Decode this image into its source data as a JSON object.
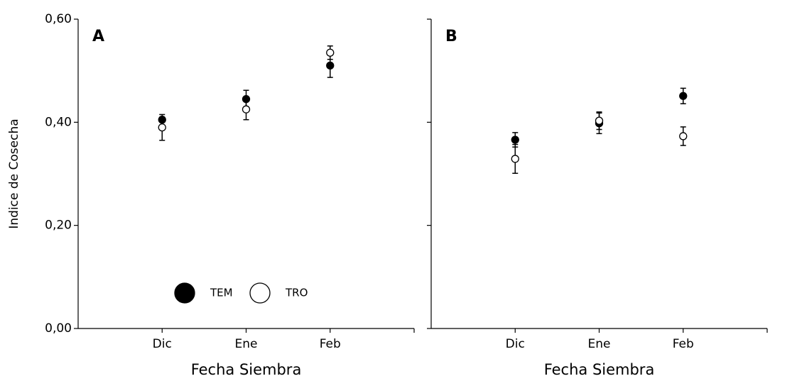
{
  "chart_data": [
    {
      "type": "scatter",
      "panel_label": "A",
      "xlabel": "Fecha Siembra",
      "ylabel": "Indice de Cosecha",
      "categories": [
        "Dic",
        "Ene",
        "Feb"
      ],
      "series": [
        {
          "name": "TEM",
          "color": "#000000",
          "marker_fill": "#000000",
          "values": [
            0.405,
            0.445,
            0.51
          ],
          "errors": [
            0.005,
            0.017,
            0.023
          ]
        },
        {
          "name": "TRO",
          "color": "#000000",
          "marker_fill": "#ffffff",
          "values": [
            0.39,
            0.425,
            0.535
          ],
          "errors": [
            0.025,
            0.02,
            0.013
          ]
        }
      ],
      "ylim": [
        0,
        0.6
      ],
      "yticks": [
        {
          "value": 0,
          "label": "0,00"
        },
        {
          "value": 0.2,
          "label": "0,20"
        },
        {
          "value": 0.4,
          "label": "0,40"
        },
        {
          "value": 0.6,
          "label": "0,60"
        }
      ],
      "tick_labels": true,
      "legend": "bottom"
    },
    {
      "type": "scatter",
      "panel_label": "B",
      "xlabel": "Fecha Siembra",
      "categories": [
        "Dic",
        "Ene",
        "Feb"
      ],
      "series": [
        {
          "color": "#000000",
          "marker_fill": "#000000",
          "values": [
            0.366,
            0.398,
            0.451
          ],
          "errors": [
            0.014,
            0.02,
            0.015
          ]
        },
        {
          "color": "#000000",
          "marker_fill": "#ffffff",
          "values": [
            0.329,
            0.403,
            0.373
          ],
          "errors": [
            0.028,
            0.017,
            0.018
          ]
        }
      ],
      "ylim": [
        0,
        0.6
      ],
      "yticks": [
        0,
        0.2,
        0.4,
        0.6
      ],
      "tick_labels": false
    }
  ]
}
